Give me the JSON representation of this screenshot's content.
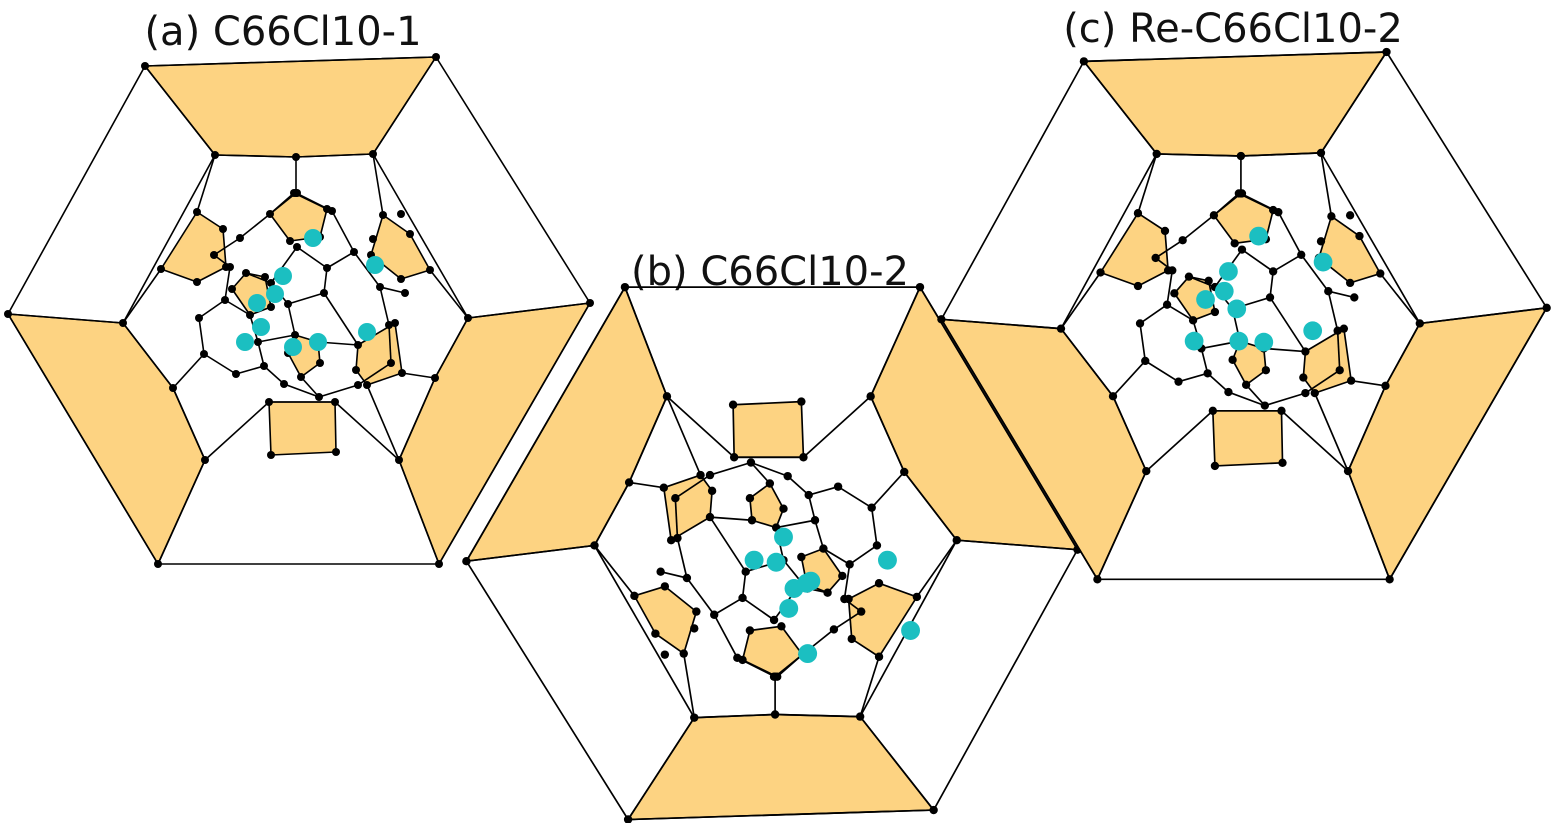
{
  "colors": {
    "highlight_face": "#FDD382",
    "chlorine_site": "#1BBFC1",
    "bond_line": "#000000",
    "carbon_atom": "#000000",
    "background": "#FFFFFF"
  },
  "panels": [
    {
      "id": "a",
      "label": "(a) C66Cl10-1"
    },
    {
      "id": "b",
      "label": "(b) C66Cl10-2"
    },
    {
      "id": "c",
      "label": "(c) Re-C66Cl10-2"
    }
  ]
}
